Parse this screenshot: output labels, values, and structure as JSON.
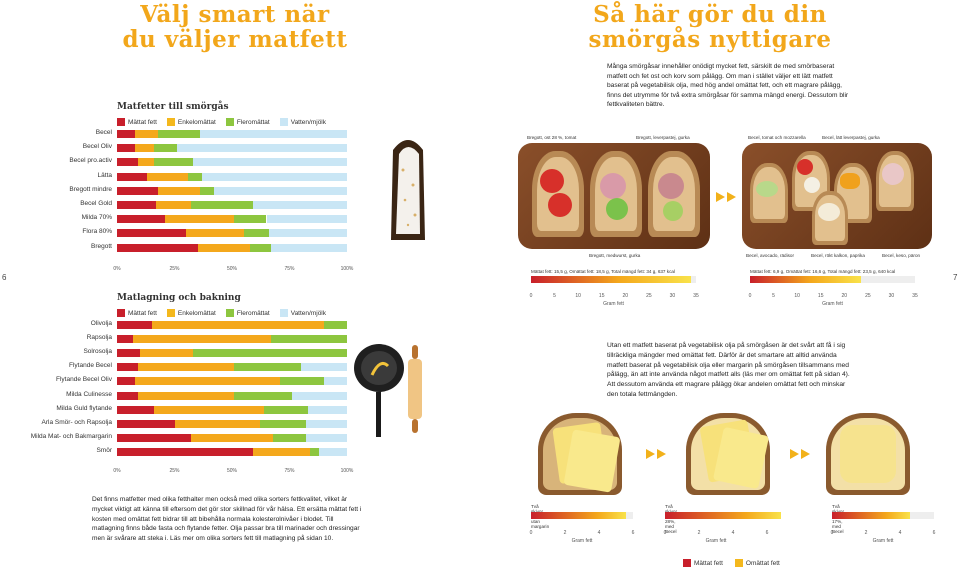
{
  "left_headline": "Välj smart när\ndu väljer matfett",
  "right_headline": "Så här gör du din\nsmörgås nyttigare",
  "intro": "Många smörgåsar innehåller onödigt mycket fett, särskilt de med smörbaserat matfett och fet ost och korv som pålägg. Om man i stället väljer ett lätt matfett baserat på vegetabilisk olja, med hög andel omättat fett, och ett magrare pålägg, finns det utrymme för två extra smörgåsar för samma mängd energi. Dessutom blir fettkvaliteten bättre.",
  "legend": [
    "Mättat fett",
    "Enkelomättat",
    "Fleromättat",
    "Vatten/mjölk"
  ],
  "colors": {
    "saturated": "#c81f2b",
    "mono": "#f4a81c",
    "poly": "#8dc63f",
    "water": "#c9e6f5",
    "accent": "#f2a71b",
    "legend_mono": "#f4b81d"
  },
  "chart1_title": "Matfetter till smörgås",
  "chart2_title": "Matlagning och bakning",
  "axis_ticks": [
    "0%",
    "25%",
    "50%",
    "75%",
    "100%"
  ],
  "chart_data": [
    {
      "type": "bar",
      "title": "Matfetter till smörgås",
      "categories": [
        "Becel",
        "Becel Oliv",
        "Becel pro.activ",
        "Lätta",
        "Bregott mindre",
        "Becel Gold",
        "Milda 70%",
        "Flora 80%",
        "Bregott"
      ],
      "series": [
        {
          "name": "Mättat fett",
          "values": [
            8,
            8,
            9,
            13,
            18,
            17,
            21,
            30,
            35
          ]
        },
        {
          "name": "Enkelomättat",
          "values": [
            10,
            8,
            7,
            18,
            18,
            15,
            30,
            25,
            23
          ]
        },
        {
          "name": "Fleromättat",
          "values": [
            18,
            10,
            17,
            6,
            6,
            27,
            14,
            11,
            9
          ]
        },
        {
          "name": "Vatten/mjölk",
          "values": [
            64,
            74,
            67,
            63,
            58,
            41,
            35,
            34,
            33
          ]
        }
      ],
      "ylim": [
        0,
        100
      ]
    },
    {
      "type": "bar",
      "title": "Matlagning och bakning",
      "categories": [
        "Olivolja",
        "Rapsolja",
        "Solrosolja",
        "Flytande Becel",
        "Flytande Becel Oliv",
        "Milda Culinesse",
        "Milda Guld flytande",
        "Arla Smör- och Rapsolja",
        "Milda Mat- och Bakmargarin",
        "Smör"
      ],
      "series": [
        {
          "name": "Mättat fett",
          "values": [
            15,
            7,
            10,
            9,
            8,
            9,
            16,
            25,
            32,
            59
          ]
        },
        {
          "name": "Enkelomättat",
          "values": [
            75,
            60,
            23,
            42,
            63,
            42,
            48,
            37,
            36,
            25
          ]
        },
        {
          "name": "Fleromättat",
          "values": [
            10,
            33,
            67,
            29,
            19,
            25,
            19,
            20,
            14,
            4
          ]
        },
        {
          "name": "Vatten/mjölk",
          "values": [
            0,
            0,
            0,
            20,
            10,
            24,
            17,
            18,
            18,
            12
          ]
        }
      ],
      "ylim": [
        0,
        100
      ]
    }
  ],
  "tray1_labels_top": [
    "Bregott, ost 28 %, tomat",
    "Bregott, leverpastej, gurka"
  ],
  "tray1_label_bottom": "Bregott, medwurst, gurka",
  "tray1_stats": "Mättat fett: 15,5 g, Omättat fett: 18,5 g, Total mängd fett: 34 g, 637 kcal",
  "tray2_labels_top": [
    "Becel, tomat och mozzarella",
    "Becel, lätt leverpastej, gurka"
  ],
  "tray2_labels_bottom": [
    "Becel, avocado, rädisor",
    "Becel, rökt kalkon, paprika",
    "Becel, keso, päron"
  ],
  "tray2_stats": "Mättat fett: 6,9 g, Omättat fett: 16,6 g, Total mängd fett: 23,5 g, 640 kcal",
  "gram_ticks_35": [
    "0",
    "5",
    "10",
    "15",
    "20",
    "25",
    "30",
    "35"
  ],
  "gram_label": "Gram fett",
  "page_left": "6",
  "page_right": "7",
  "right_body": "Utan ett matfett baserat på vegetabilisk olja på smörgåsen är det svårt att få i sig tillräckliga mängder med omättat fett. Därför är det smartare att alltid använda matfett baserat på vegetabilisk olja eller margarin på smörgåsen tillsammans med pålägg, än att inte använda något matfett alls (läs mer om omättat fett på sidan 4). Att dessutom använda ett magrare pålägg ökar andelen omättat fett och minskar den totala fettmängden.",
  "left_body": "Det finns matfetter med olika fetthalter men också med olika sorters fettkvalitet, vilket är mycket viktigt att känna till eftersom det gör stor skillnad för vår hälsa. Ett ersätta mättat fett i kosten med omättat fett bidrar till att bibehålla normala kolesterolnivåer i blodet. Till matlagning finns både fasta och flytande fetter. Olja passar bra till marinader och dressingar men är svårare att steka i. Läs mer om olika sorters fett till matlagning på sidan 10.",
  "bread_charts": [
    {
      "title": "Två skivor ost 28%, utan margarin",
      "sat": 3.9,
      "unsat": 1.7,
      "ticks": [
        "0",
        "2",
        "4",
        "6"
      ]
    },
    {
      "title": "Två skivor ost 28%, med Becel",
      "sat": 4.0,
      "unsat": 2.8,
      "ticks": [
        "0",
        "2",
        "4",
        "6"
      ]
    },
    {
      "title": "Två skivor ost 17%, med Becel",
      "sat": 2.6,
      "unsat": 2.0,
      "ticks": [
        "0",
        "2",
        "4",
        "6"
      ]
    }
  ],
  "bottom_legend": [
    "Mättat fett",
    "Omättat fett"
  ]
}
